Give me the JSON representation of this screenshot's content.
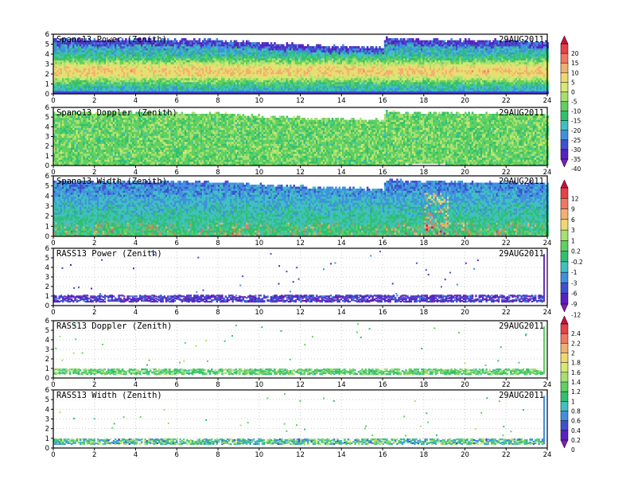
{
  "chart_data": [
    {
      "type": "heatmap",
      "title": "Spano13 Power (Zenith)",
      "date": "29AUG2011",
      "xlim": [
        0,
        24
      ],
      "ylim": [
        0,
        6
      ],
      "x_ticks": [
        "0",
        "2",
        "4",
        "6",
        "8",
        "10",
        "12",
        "14",
        "16",
        "18",
        "20",
        "22",
        "24"
      ],
      "y_ticks": [
        "0",
        "1",
        "2",
        "3",
        "4",
        "5",
        "6"
      ],
      "field": "power",
      "approx_profile": {
        "lower_band_dB": -15,
        "mid_band_dB": 0,
        "upper_band_dB": -20,
        "data_top_km_by_hour": [
          [
            0,
            5.6
          ],
          [
            9,
            5.4
          ],
          [
            12,
            5.0
          ],
          [
            16,
            4.8
          ],
          [
            17,
            5.8
          ],
          [
            24,
            5.4
          ]
        ]
      }
    },
    {
      "type": "heatmap",
      "title": "Spano13 Doppler (Zenith)",
      "date": "29AUG2011",
      "xlim": [
        0,
        24
      ],
      "ylim": [
        0,
        6
      ],
      "x_ticks": [
        "0",
        "2",
        "4",
        "6",
        "8",
        "10",
        "12",
        "14",
        "16",
        "18",
        "20",
        "22",
        "24"
      ],
      "y_ticks": [
        "0",
        "1",
        "2",
        "3",
        "4",
        "5",
        "6"
      ],
      "field": "doppler"
    },
    {
      "type": "heatmap",
      "title": "Spano13 Width (Zenith)",
      "date": "29AUG2011",
      "xlim": [
        0,
        24
      ],
      "ylim": [
        0,
        6
      ],
      "x_ticks": [
        "0",
        "2",
        "4",
        "6",
        "8",
        "10",
        "12",
        "14",
        "16",
        "18",
        "20",
        "22",
        "24"
      ],
      "y_ticks": [
        "0",
        "1",
        "2",
        "3",
        "4",
        "5",
        "6"
      ],
      "field": "width"
    },
    {
      "type": "scatter",
      "title": "RASS13 Power (Zenith)",
      "date": "29AUG2011",
      "xlim": [
        0,
        24
      ],
      "ylim": [
        0,
        6
      ],
      "x_ticks": [
        "0",
        "2",
        "4",
        "6",
        "8",
        "10",
        "12",
        "14",
        "16",
        "18",
        "20",
        "22",
        "24"
      ],
      "y_ticks": [
        "0",
        "1",
        "2",
        "3",
        "4",
        "5",
        "6"
      ],
      "field": "rass_power",
      "band_km": [
        0.5,
        1.2
      ]
    },
    {
      "type": "scatter",
      "title": "RASS13 Doppler (Zenith)",
      "date": "29AUG2011",
      "xlim": [
        0,
        24
      ],
      "ylim": [
        0,
        6
      ],
      "x_ticks": [
        "0",
        "2",
        "4",
        "6",
        "8",
        "10",
        "12",
        "14",
        "16",
        "18",
        "20",
        "22",
        "24"
      ],
      "y_ticks": [
        "0",
        "1",
        "2",
        "3",
        "4",
        "5",
        "6"
      ],
      "field": "rass_doppler",
      "band_km": [
        0.5,
        1.0
      ]
    },
    {
      "type": "scatter",
      "title": "RASS13 Width (Zenith)",
      "date": "29AUG2011",
      "xlim": [
        0,
        24
      ],
      "ylim": [
        0,
        6
      ],
      "x_ticks": [
        "0",
        "2",
        "4",
        "6",
        "8",
        "10",
        "12",
        "14",
        "16",
        "18",
        "20",
        "22",
        "24"
      ],
      "y_ticks": [
        "0",
        "1",
        "2",
        "3",
        "4",
        "5",
        "6"
      ],
      "field": "rass_width",
      "band_km": [
        0.5,
        1.0
      ]
    }
  ],
  "colorbars": [
    {
      "name": "power",
      "labels": [
        "20",
        "15",
        "10",
        "5",
        "0",
        "-5",
        "-10",
        "-15",
        "-20",
        "-25",
        "-30",
        "-35",
        "-40"
      ],
      "colors": [
        "#c8103c",
        "#e8404a",
        "#f07860",
        "#f0b070",
        "#f0d870",
        "#d8e870",
        "#a8e070",
        "#60d060",
        "#30c070",
        "#40c0c0",
        "#4090e0",
        "#4050d0",
        "#5a20c0",
        "#7a20b0"
      ]
    },
    {
      "name": "width",
      "labels": [
        "12",
        "9",
        "6",
        "3",
        "1",
        "0.2",
        "-0.2",
        "-1",
        "-3",
        "-6",
        "-9",
        "-12"
      ],
      "colors": [
        "#c8103c",
        "#e8404a",
        "#f07860",
        "#f0b070",
        "#f0d870",
        "#a8e070",
        "#60d060",
        "#30c070",
        "#40c0c0",
        "#4090e0",
        "#4050d0",
        "#5a20c0",
        "#7a20b0"
      ]
    },
    {
      "name": "rass",
      "labels": [
        "2.4",
        "2.2",
        "2",
        "1.8",
        "1.6",
        "1.4",
        "1.2",
        "1",
        "0.8",
        "0.6",
        "0.4",
        "0.2",
        "0"
      ],
      "colors": [
        "#c8103c",
        "#e8404a",
        "#f07860",
        "#f0b070",
        "#f0d870",
        "#d8e870",
        "#a8e070",
        "#60d060",
        "#30c070",
        "#40c0c0",
        "#4090e0",
        "#4050d0",
        "#5a20c0",
        "#7a20b0"
      ]
    }
  ]
}
